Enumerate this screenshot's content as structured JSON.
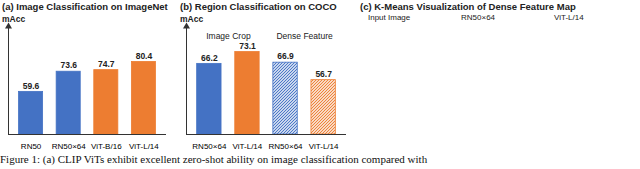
{
  "chart_data": [
    {
      "type": "bar",
      "title": "(a) Image Classification on ImageNet",
      "ylabel": "mAcc",
      "categories": [
        "RN50",
        "RN50×64",
        "ViT-B/16",
        "ViT-L/14"
      ],
      "values": [
        59.6,
        73.6,
        74.7,
        80.4
      ],
      "colors": [
        "#4472c4",
        "#4472c4",
        "#ed7d31",
        "#ed7d31"
      ],
      "ylim": [
        30,
        105
      ],
      "yticks": [],
      "data_labels": true,
      "tick_labels": "x"
    },
    {
      "type": "bar",
      "title": "(b) Region Classification on COCO",
      "ylabel": "mAcc",
      "categories": [
        "RN50×64",
        "ViT-L/14",
        "RN50×64",
        "ViT-L/14"
      ],
      "series": [
        {
          "name": "Image Crop",
          "values": [
            66.2,
            73.1,
            null,
            null
          ]
        },
        {
          "name": "Dense Feature",
          "values": [
            null,
            null,
            66.9,
            56.7
          ],
          "marker": "hatch"
        }
      ],
      "colors": [
        "#4472c4",
        "#ed7d31",
        "#4472c4",
        "#ed7d31"
      ],
      "ylim": [
        25,
        88
      ],
      "yticks": [],
      "data_labels": true,
      "tick_labels": "x"
    }
  ],
  "figure": {
    "panel_c": {
      "title": "(c) K-Means Visualization of Dense Feature Map",
      "columns": [
        "Input Image",
        "RN50×64",
        "ViT-L/14"
      ]
    },
    "caption": "Figure 1: (a) CLIP ViTs exhibit excellent zero-shot ability on image classification compared with"
  }
}
